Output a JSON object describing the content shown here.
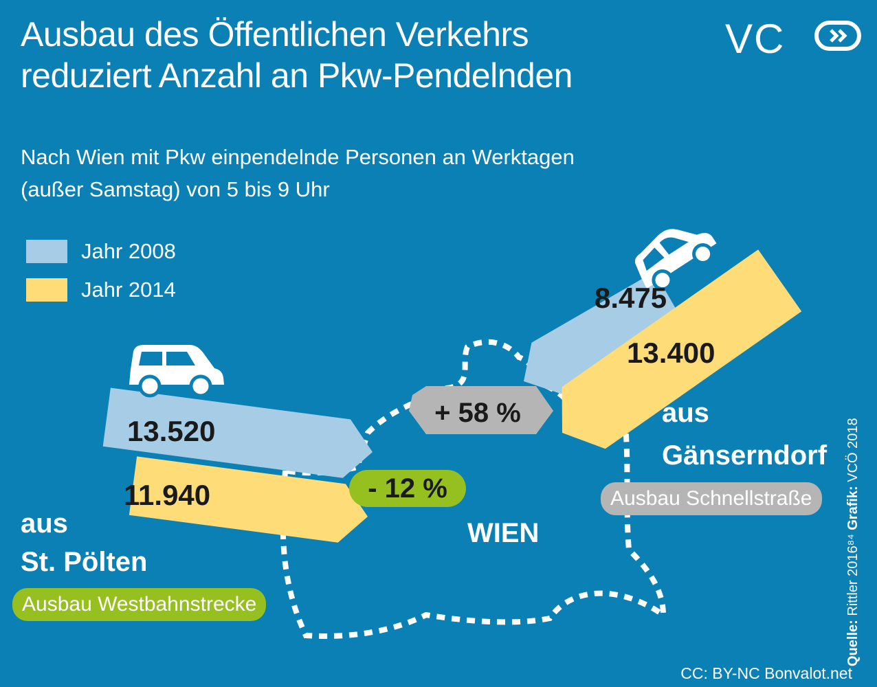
{
  "title_line1": "Ausbau des Öffentlichen Verkehrs",
  "title_line2": "reduziert Anzahl an Pkw-Pendelnden",
  "subtitle_line1": "Nach Wien mit Pkw einpendelnde Personen an Werktagen",
  "subtitle_line2": "(außer Samstag) von 5 bis 9 Uhr",
  "logo_text": "VC",
  "colors": {
    "background": "#0a80b4",
    "year_2008": "#a6cce6",
    "year_2014": "#fedd79",
    "green": "#95c01f",
    "gray": "#b5b5b5"
  },
  "legend": [
    {
      "label": "Jahr 2008",
      "color": "#a6cce6"
    },
    {
      "label": "Jahr 2014",
      "color": "#fedd79"
    }
  ],
  "chart_data": {
    "type": "bar",
    "categories": [
      "St. Pölten",
      "Gänserndorf"
    ],
    "series": [
      {
        "name": "Jahr 2008",
        "values": [
          13520,
          8475
        ]
      },
      {
        "name": "Jahr 2014",
        "values": [
          11940,
          13400
        ]
      }
    ],
    "value_labels": {
      "stpoelten_2008": "13.520",
      "stpoelten_2014": "11.940",
      "gaenserndorf_2008": "8.475",
      "gaenserndorf_2014": "13.400"
    },
    "changes": {
      "stpoelten": "- 12 %",
      "gaenserndorf": "+ 58 %"
    }
  },
  "places": {
    "west_line1": "aus",
    "west_line2": "St. Pölten",
    "east_line1": "aus",
    "east_line2": "Gänserndorf",
    "center": "WIEN"
  },
  "notes": {
    "west": "Ausbau Westbahnstrecke",
    "east": "Ausbau Schnellstraße"
  },
  "source": {
    "label_source": "Quelle:",
    "source_text": "Rittler 2016⁸⁴",
    "label_graphic": "Grafik:",
    "graphic_text": "VCÖ 2018"
  },
  "credit": "CC: BY-NC Bonvalot.net",
  "icons": [
    "car-icon",
    "car-icon"
  ]
}
